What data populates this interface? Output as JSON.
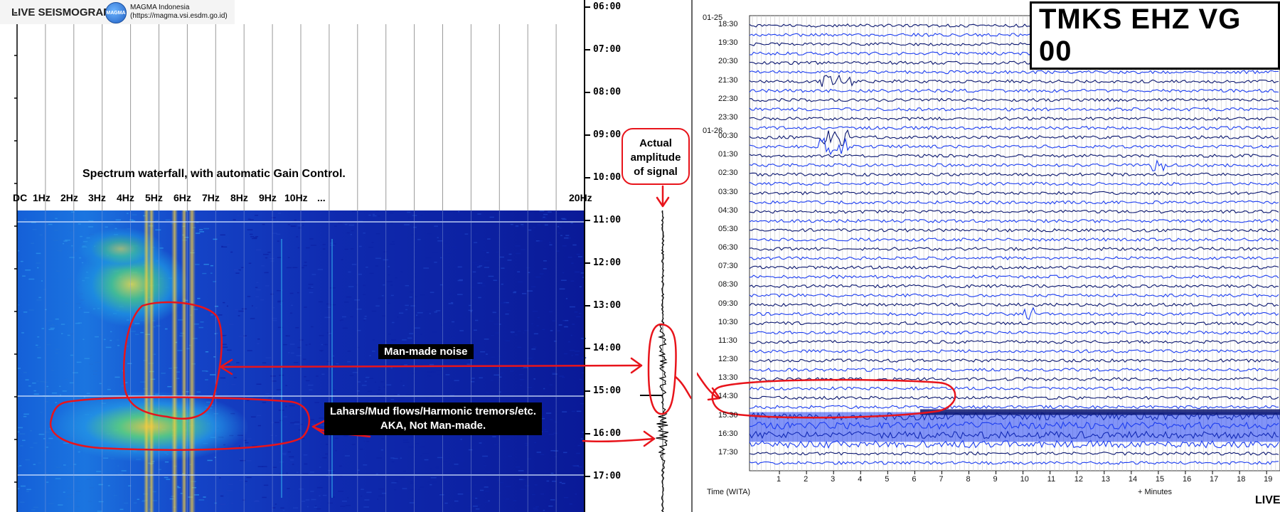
{
  "header": {
    "app_title": "LIVE SEISMOGRAM",
    "org_name": "MAGMA Indonesia",
    "org_url": "(https://magma.vsi.esdm.go.id)",
    "logo_icon": "magma-logo-icon"
  },
  "waterfall": {
    "caption": "Spectrum waterfall, with automatic Gain Control.",
    "freq_ticks": [
      "DC",
      "1Hz",
      "2Hz",
      "3Hz",
      "4Hz",
      "5Hz",
      "6Hz",
      "7Hz",
      "8Hz",
      "9Hz",
      "10Hz",
      "...",
      "20Hz"
    ],
    "time_ticks": [
      "06:00",
      "07:00",
      "08:00",
      "09:00",
      "10:00",
      "11:00",
      "12:00",
      "13:00",
      "14:00",
      "15:00",
      "16:00",
      "17:00"
    ]
  },
  "annotations": {
    "actual_amplitude": [
      "Actual",
      "amplitude",
      "of signal"
    ],
    "man_made": "Man-made noise",
    "lahars_line1": "Lahars/Mud flows/Harmonic tremors/etc.",
    "lahars_line2": "AKA, Not Man-made."
  },
  "helicorder": {
    "station": "TMKS EHZ VG 00",
    "date_top": "01-25",
    "date_mid": "01-26",
    "row_labels": [
      "18:30",
      "19:30",
      "20:30",
      "21:30",
      "22:30",
      "23:30",
      "00:30",
      "01:30",
      "02:30",
      "03:30",
      "04:30",
      "05:30",
      "06:30",
      "07:30",
      "08:30",
      "09:30",
      "10:30",
      "11:30",
      "12:30",
      "13:30",
      "14:30",
      "15:30",
      "16:30",
      "17:30"
    ],
    "x_ticks": [
      "1",
      "2",
      "3",
      "4",
      "5",
      "6",
      "7",
      "8",
      "9",
      "10",
      "11",
      "12",
      "13",
      "14",
      "15",
      "16",
      "17",
      "18",
      "19"
    ],
    "time_axis_label": "Time (WITA)",
    "minutes_label": "+ Minutes",
    "live_badge": "LIVE"
  },
  "colors": {
    "annotation_red": "#e8141b",
    "trace_blue_dark": "#0a1670",
    "trace_blue_bright": "#1c3df0",
    "waterfall_base": "#0b1a9a"
  }
}
